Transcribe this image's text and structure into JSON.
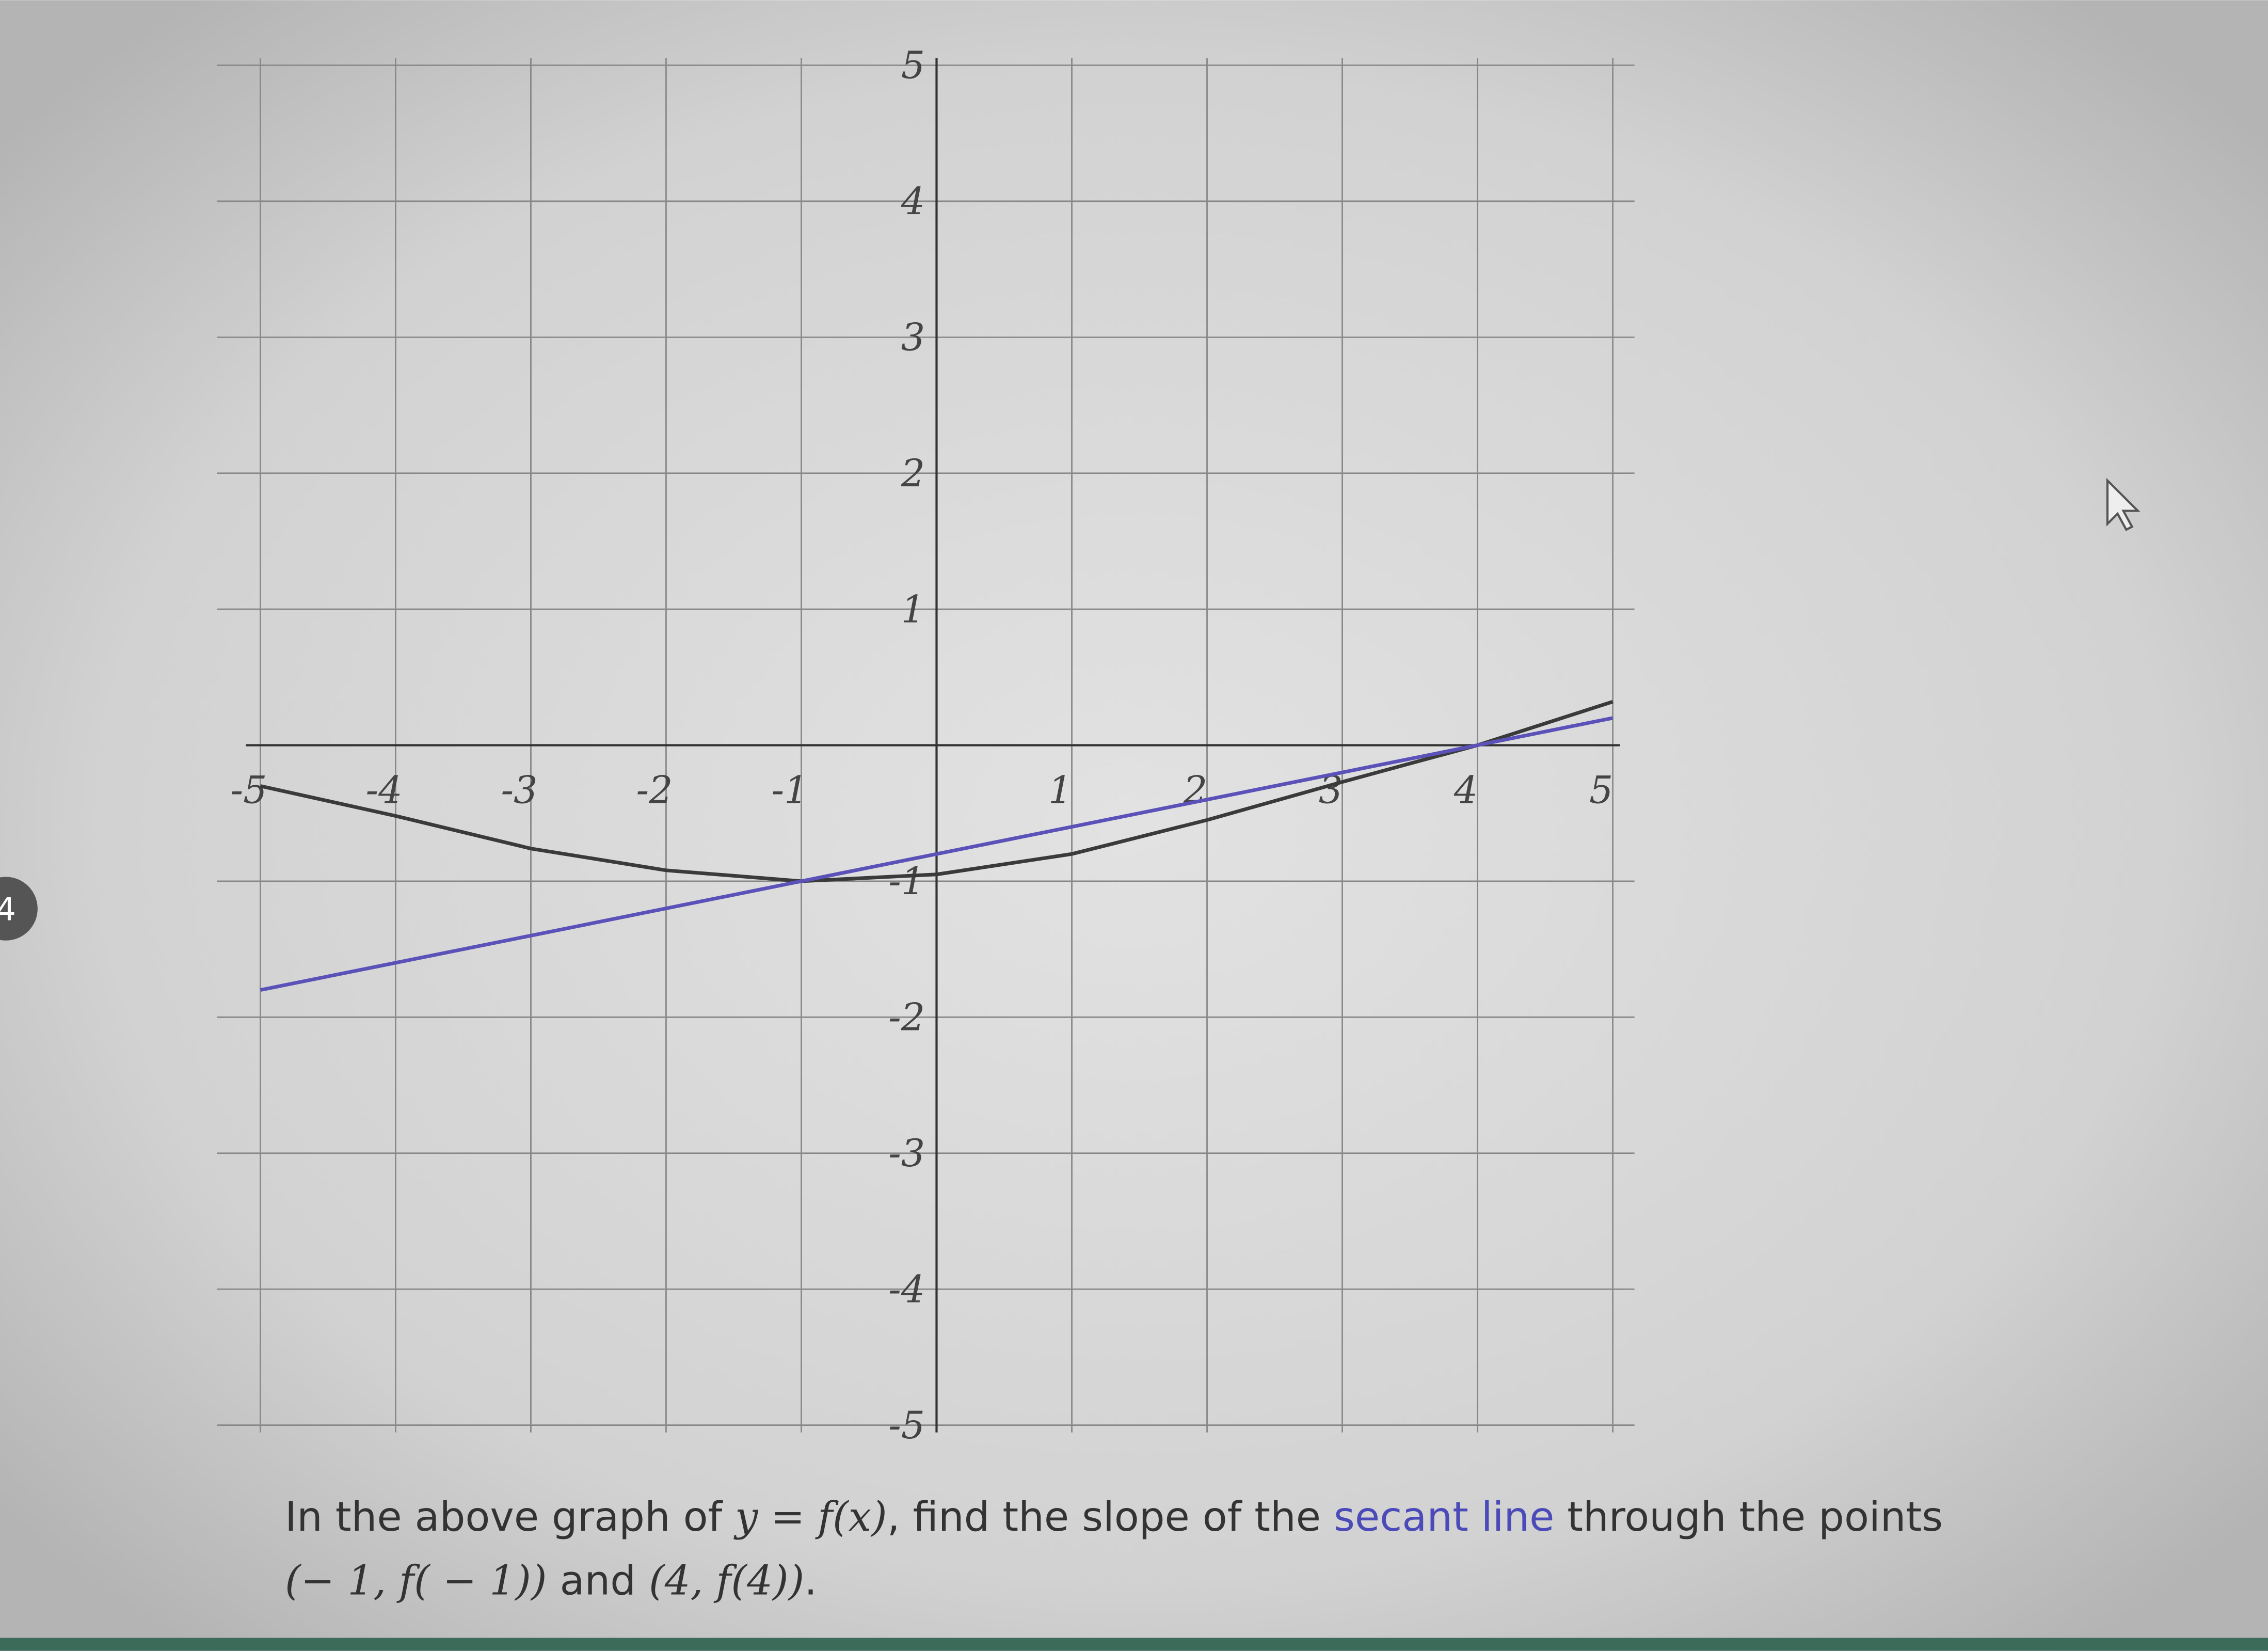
{
  "chart_data": {
    "type": "line",
    "x": [
      -5,
      -4,
      -3,
      -2,
      -1,
      0,
      1,
      2,
      3,
      4,
      5
    ],
    "series": [
      {
        "color": "#3a3a3a",
        "values": [
          -0.3,
          -0.52,
          -0.76,
          -0.92,
          -1,
          -0.95,
          -0.8,
          -0.55,
          -0.27,
          0,
          0.32
        ]
      },
      {
        "color": "#5a52b8",
        "values": [
          -1.8,
          -1.6,
          -1.4,
          -1.2,
          -1,
          -0.8,
          -0.6,
          -0.4,
          -0.2,
          0,
          0.2
        ]
      }
    ],
    "xlim": [
      -5,
      5
    ],
    "ylim": [
      -5,
      5
    ],
    "xticks": [
      -5,
      -4,
      -3,
      -2,
      -1,
      1,
      2,
      3,
      4,
      5
    ],
    "yticks": [
      -5,
      -4,
      -3,
      -2,
      -1,
      1,
      2,
      3,
      4,
      5
    ],
    "grid": true
  },
  "question": {
    "parts": [
      "In the above graph of ",
      "y = f(x)",
      ", find the slope of the ",
      "secant line",
      " through the points"
    ],
    "line2": [
      "(− 1, f( − 1))",
      " and ",
      "(4, f(4))",
      "."
    ]
  },
  "badge": "4"
}
